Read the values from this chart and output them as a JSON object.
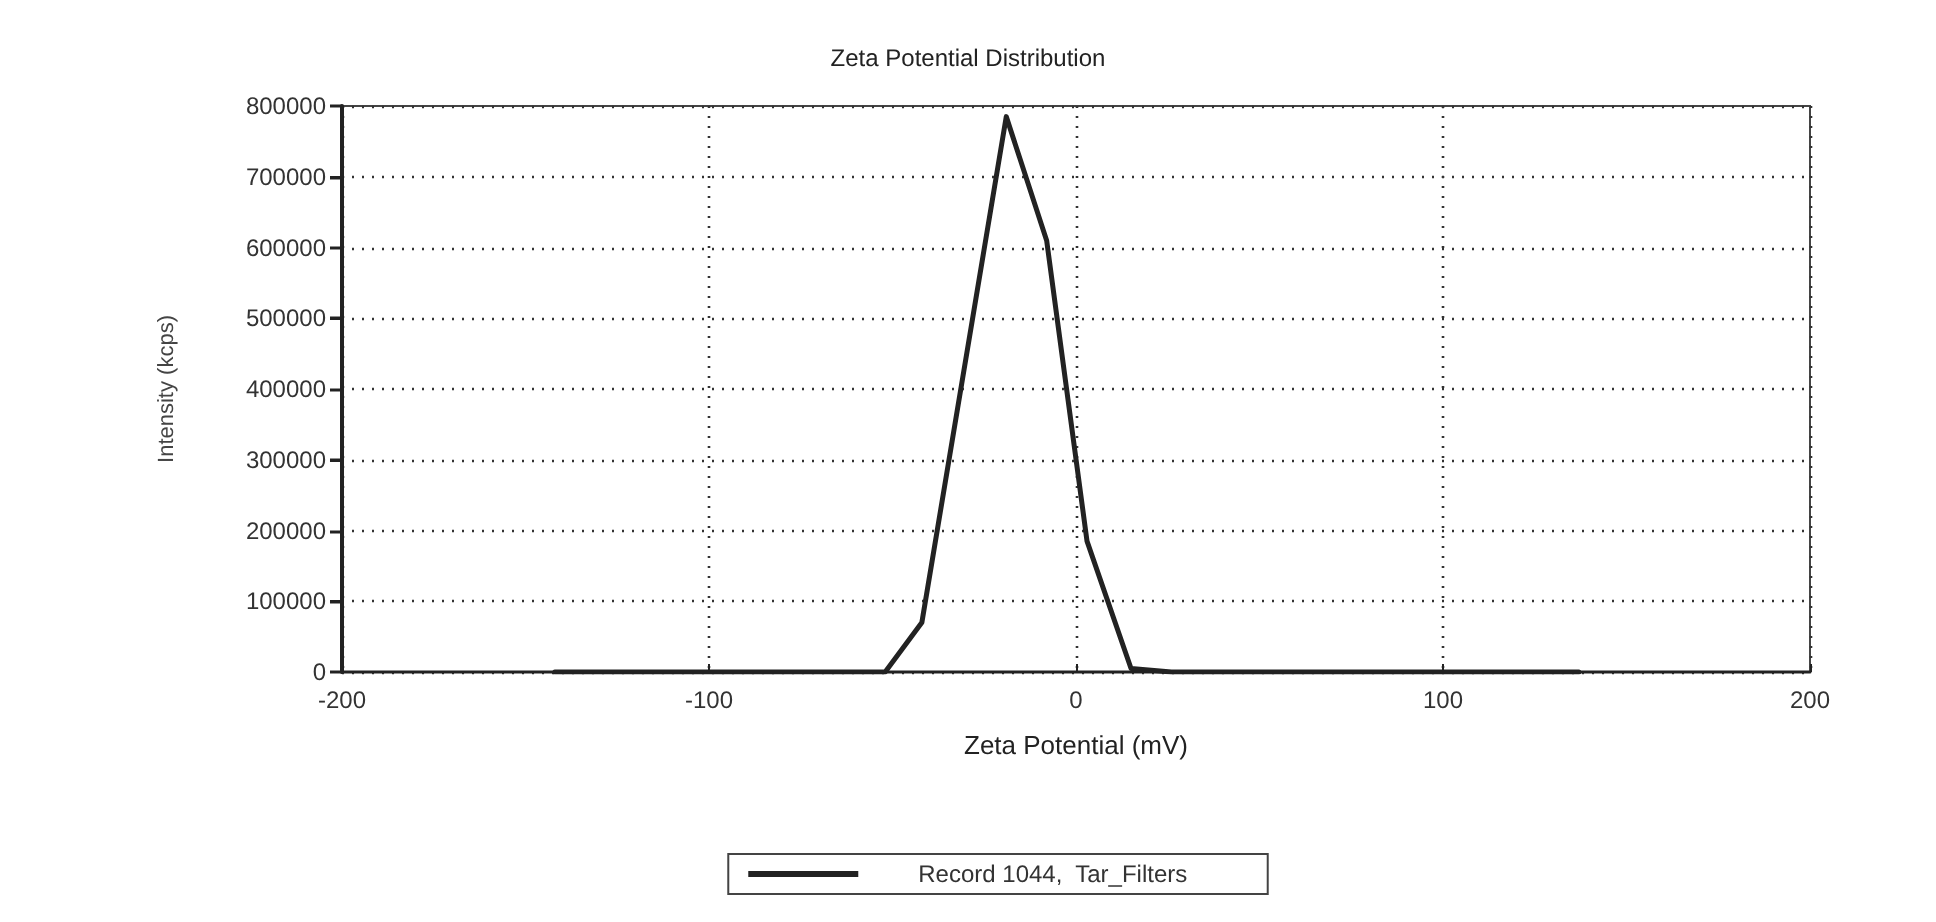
{
  "chart_data": {
    "type": "line",
    "title": "Zeta Potential Distribution",
    "xlabel": "Zeta Potential (mV)",
    "ylabel": "Intensity (kcps)",
    "x": [
      -142,
      -52,
      -42,
      -19,
      -8,
      3,
      15,
      26,
      137
    ],
    "series": [
      {
        "name": "Record 1044,  Tar_Filters",
        "color": "#222222",
        "values": [
          0,
          0,
          70000,
          785000,
          610000,
          185000,
          5000,
          0,
          0
        ]
      }
    ],
    "xlim": [
      -200,
      200
    ],
    "xticks": [
      -200,
      -100,
      0,
      100,
      200
    ],
    "ylim": [
      0,
      800000
    ],
    "yticks": [
      0,
      100000,
      200000,
      300000,
      400000,
      500000,
      600000,
      700000,
      800000
    ],
    "grid": true,
    "legend": "bottom",
    "marker": "none",
    "line_style": "solid"
  }
}
